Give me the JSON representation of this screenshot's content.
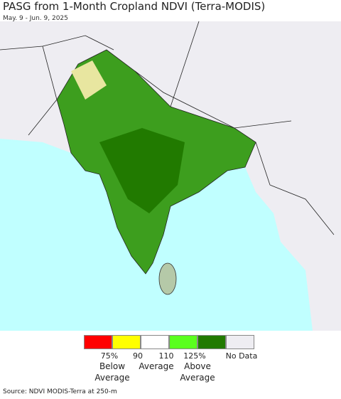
{
  "header": {
    "title": "PASG from 1-Month Cropland NDVI (Terra-MODIS)",
    "subtitle": "May. 9 - Jun. 9, 2025"
  },
  "legend": {
    "colors": [
      "#ff0000",
      "#ffff00",
      "#ffffff",
      "#5aff1e",
      "#217a00",
      "#eeedf2"
    ],
    "tick_labels": [
      "75%",
      "90",
      "110",
      "125%",
      "No Data"
    ],
    "captions": [
      "Below Average",
      "Average",
      "Above Average"
    ]
  },
  "footer": {
    "source": "Source: NDVI MODIS-Terra at 250-m"
  }
}
